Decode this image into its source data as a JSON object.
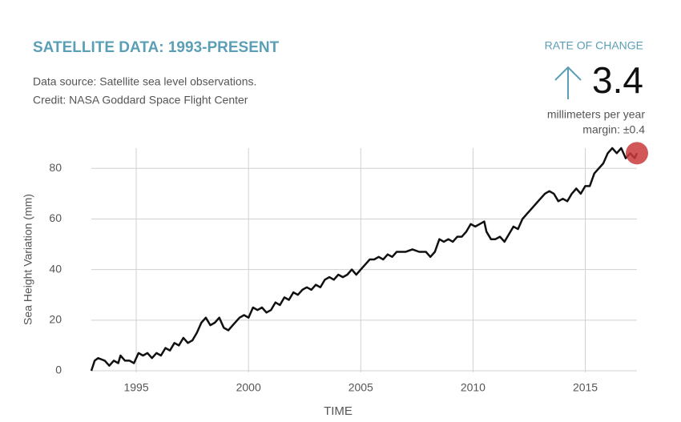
{
  "chart_data": {
    "type": "line",
    "title": "SATELLITE DATA: 1993-PRESENT",
    "subtitle": [
      "Data source: Satellite sea level observations.",
      "Credit: NASA Goddard Space Flight Center"
    ],
    "rate_label": "RATE OF CHANGE",
    "rate": 3.4,
    "rate_unit": "millimeters per year",
    "margin": "margin: ±0.4",
    "xlabel": "TIME",
    "ylabel": "Sea Height Variation (mm)",
    "xlim": [
      1993,
      2017.3
    ],
    "xticks": [
      1995,
      2000,
      2005,
      2010,
      2015
    ],
    "ylim": [
      0,
      88
    ],
    "yticks": [
      0,
      20,
      40,
      60,
      80
    ],
    "grid": true,
    "series": [
      {
        "name": "Sea height variation",
        "color": "#111111",
        "x": [
          1993.0,
          1993.15,
          1993.3,
          1993.6,
          1993.8,
          1994.0,
          1994.2,
          1994.3,
          1994.5,
          1994.7,
          1994.9,
          1995.1,
          1995.3,
          1995.5,
          1995.7,
          1995.9,
          1996.1,
          1996.3,
          1996.5,
          1996.7,
          1996.9,
          1997.1,
          1997.3,
          1997.5,
          1997.7,
          1997.9,
          1998.1,
          1998.3,
          1998.5,
          1998.7,
          1998.9,
          1999.1,
          1999.3,
          1999.6,
          1999.8,
          2000.0,
          2000.2,
          2000.4,
          2000.6,
          2000.8,
          2001.0,
          2001.2,
          2001.4,
          2001.6,
          2001.8,
          2002.0,
          2002.2,
          2002.4,
          2002.6,
          2002.8,
          2003.0,
          2003.2,
          2003.4,
          2003.6,
          2003.8,
          2004.0,
          2004.2,
          2004.4,
          2004.6,
          2004.8,
          2005.0,
          2005.2,
          2005.4,
          2005.6,
          2005.8,
          2006.0,
          2006.2,
          2006.4,
          2006.6,
          2006.8,
          2007.0,
          2007.3,
          2007.6,
          2007.9,
          2008.1,
          2008.3,
          2008.5,
          2008.7,
          2008.9,
          2009.1,
          2009.3,
          2009.5,
          2009.7,
          2009.9,
          2010.1,
          2010.3,
          2010.5,
          2010.6,
          2010.8,
          2011.0,
          2011.2,
          2011.4,
          2011.6,
          2011.8,
          2012.0,
          2012.2,
          2012.4,
          2012.6,
          2012.8,
          2013.0,
          2013.2,
          2013.4,
          2013.6,
          2013.8,
          2014.0,
          2014.2,
          2014.4,
          2014.6,
          2014.8,
          2015.0,
          2015.2,
          2015.4,
          2015.6,
          2015.8,
          2016.0,
          2016.2,
          2016.4,
          2016.6,
          2016.8,
          2017.0,
          2017.2,
          2017.3
        ],
        "values": [
          0,
          4,
          5,
          4,
          2,
          4,
          3,
          6,
          4,
          4,
          3,
          7,
          6,
          7,
          5,
          7,
          6,
          9,
          8,
          11,
          10,
          13,
          11,
          12,
          15,
          19,
          21,
          18,
          19,
          21,
          17,
          16,
          18,
          21,
          22,
          21,
          25,
          24,
          25,
          23,
          24,
          27,
          26,
          29,
          28,
          31,
          30,
          32,
          33,
          32,
          34,
          33,
          36,
          37,
          36,
          38,
          37,
          38,
          40,
          38,
          40,
          42,
          44,
          44,
          45,
          44,
          46,
          45,
          47,
          47,
          47,
          48,
          47,
          47,
          45,
          47,
          52,
          51,
          52,
          51,
          53,
          53,
          55,
          58,
          57,
          58,
          59,
          55,
          52,
          52,
          53,
          51,
          54,
          57,
          56,
          60,
          62,
          64,
          66,
          68,
          70,
          71,
          70,
          67,
          68,
          67,
          70,
          72,
          70,
          73,
          73,
          78,
          80,
          82,
          86,
          88,
          86,
          88,
          84,
          86,
          84,
          86
        ]
      }
    ]
  }
}
